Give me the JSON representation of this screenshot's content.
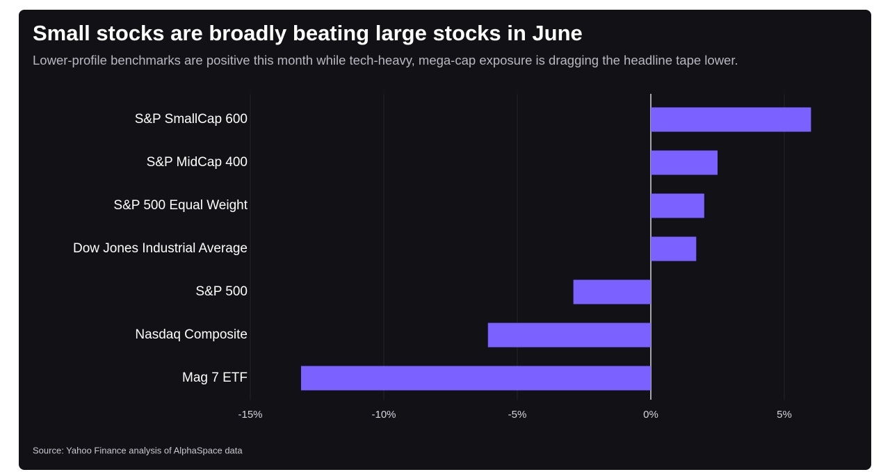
{
  "chart_data": {
    "type": "bar",
    "orientation": "horizontal",
    "title": "Small stocks are broadly beating large stocks in June",
    "subtitle": "Lower-profile benchmarks are positive this month while tech-heavy, mega-cap exposure is dragging the headline tape lower.",
    "source": "Source: Yahoo Finance analysis of AlphaSpace data",
    "categories": [
      "S&P SmallCap 600",
      "S&P MidCap 400",
      "S&P 500 Equal Weight",
      "Dow Jones Industrial Average",
      "S&P 500",
      "Nasdaq Composite",
      "Mag 7 ETF"
    ],
    "values": [
      6.0,
      2.5,
      2.0,
      1.7,
      -2.9,
      -6.1,
      -13.1
    ],
    "color": "#7b61ff",
    "xlim": [
      -15,
      7.5
    ],
    "xticks": [
      {
        "value": -15,
        "label": "-15%"
      },
      {
        "value": -10,
        "label": "-10%"
      },
      {
        "value": -5,
        "label": "-5%"
      },
      {
        "value": 0,
        "label": "0%"
      },
      {
        "value": 5,
        "label": "5%"
      }
    ],
    "grid": true
  }
}
